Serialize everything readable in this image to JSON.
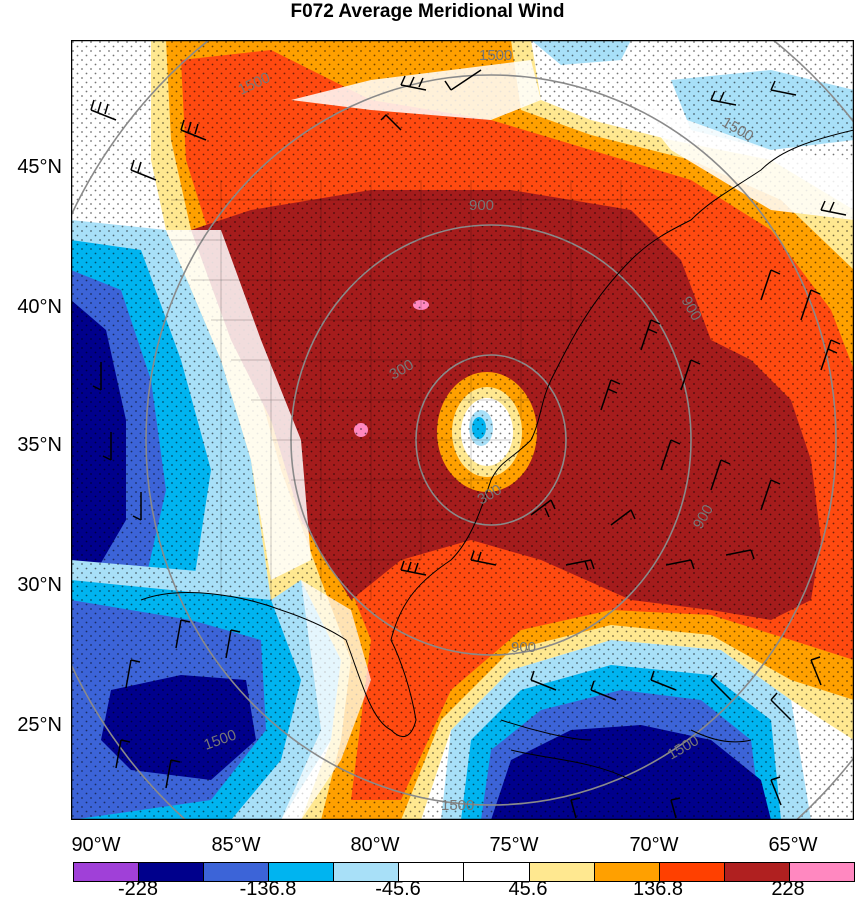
{
  "title": "F072 Average Meridional Wind",
  "lat_labels": [
    "45°N",
    "40°N",
    "35°N",
    "30°N",
    "25°N"
  ],
  "lon_labels": [
    "90°W",
    "85°W",
    "80°W",
    "75°W",
    "70°W",
    "65°W"
  ],
  "contour_labels": [
    "1500",
    "1500",
    "1500",
    "1500",
    "1500",
    "1500",
    "900",
    "900",
    "900",
    "900",
    "300",
    "300"
  ],
  "colorbar": {
    "colors": [
      "#a040d8",
      "#00008c",
      "#3c64d8",
      "#00b4f0",
      "#a8e0f8",
      "#ffffff",
      "#ffffff",
      "#ffe890",
      "#ffa000",
      "#ff4000",
      "#b02020",
      "#ff88c0"
    ],
    "labels": [
      "-228",
      "-136.8",
      "-45.6",
      "45.6",
      "136.8",
      "228"
    ]
  },
  "colors": {
    "dark_red": "#a51c1c",
    "red_orange": "#ff4a10",
    "orange": "#ffa000",
    "yellow": "#ffe890",
    "light_blue": "#a8e0f8",
    "cyan": "#00b4f0",
    "blue": "#3c64d8",
    "navy": "#00008c",
    "pink": "#ff88c0"
  }
}
